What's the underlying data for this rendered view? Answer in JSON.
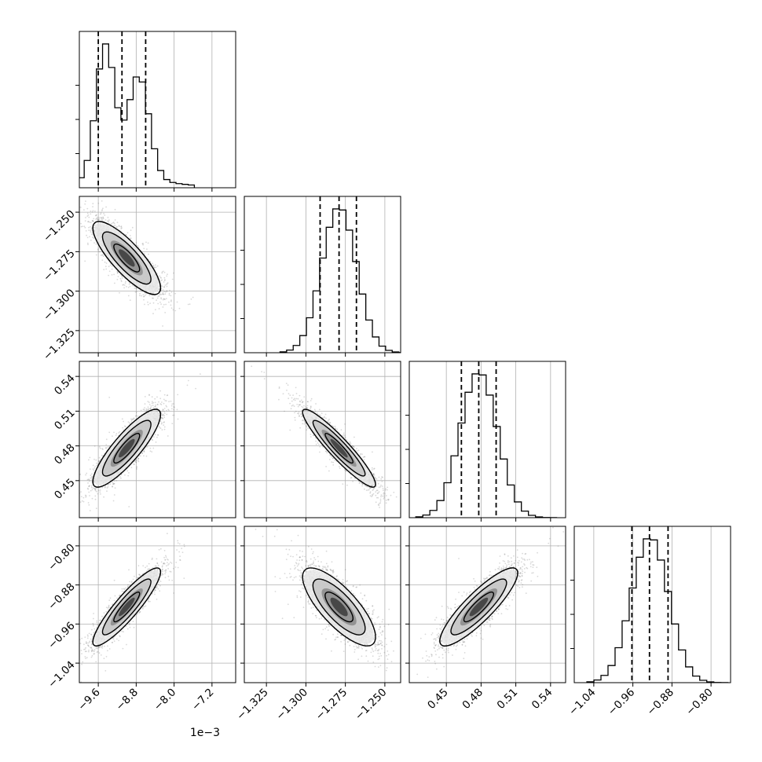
{
  "chart_data": {
    "type": "corner",
    "params": [
      {
        "range": [
          -10.0,
          -6.7
        ],
        "ticks": [
          -9.6,
          -8.8,
          -8.0,
          -7.2
        ],
        "tick_labels": [
          "−9.6",
          "−8.8",
          "−8.0",
          "−7.2"
        ],
        "offset_text": "1e−3",
        "mean": -9.0,
        "sd": 0.34,
        "q16": -9.6,
        "q50": -9.1,
        "q84": -8.6
      },
      {
        "range": [
          -1.339,
          -1.24
        ],
        "ticks": [
          -1.325,
          -1.3,
          -1.275,
          -1.25
        ],
        "tick_labels": [
          "−1.325",
          "−1.300",
          "−1.275",
          "−1.250"
        ],
        "offset_text": "",
        "mean": -1.279,
        "sd": 0.011,
        "q16": -1.291,
        "q50": -1.279,
        "q84": -1.268
      },
      {
        "range": [
          0.418,
          0.553
        ],
        "ticks": [
          0.45,
          0.48,
          0.51,
          0.54
        ],
        "tick_labels": [
          "0.45",
          "0.48",
          "0.51",
          "0.54"
        ],
        "offset_text": "",
        "mean": 0.478,
        "sd": 0.016,
        "q16": 0.463,
        "q50": 0.478,
        "q84": 0.493
      },
      {
        "range": [
          -1.08,
          -0.76
        ],
        "ticks": [
          -1.04,
          -0.96,
          -0.88,
          -0.8
        ],
        "tick_labels": [
          "−1.04",
          "−0.96",
          "−0.88",
          "−0.80"
        ],
        "offset_text": "",
        "mean": -0.925,
        "sd": 0.038,
        "q16": -0.962,
        "q50": -0.926,
        "q84": -0.888
      }
    ],
    "correlations": {
      "1-0": -0.82,
      "2-0": 0.86,
      "2-1": -0.93,
      "3-0": 0.9,
      "3-1": -0.77,
      "3-2": 0.87
    },
    "histogram_bins": 20,
    "quantile_lines": [
      0.16,
      0.5,
      0.84
    ],
    "grid": true,
    "colors": {
      "contour": "#000000",
      "points": "#777777",
      "quantile": "#000000",
      "grid": "#b0b0b0"
    }
  }
}
